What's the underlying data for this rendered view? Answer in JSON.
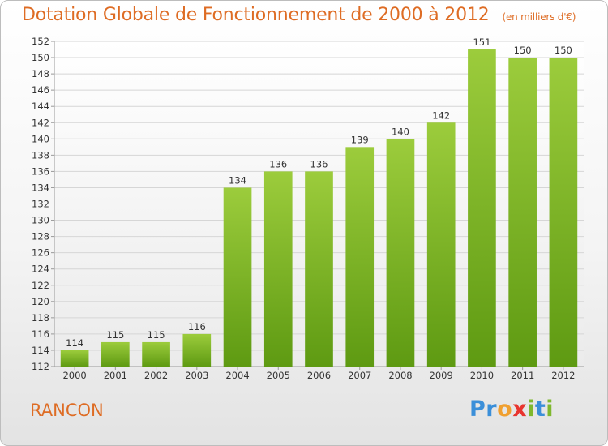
{
  "title": "Dotation Globale de Fonctionnement de 2000 à 2012",
  "subtitle": "(en milliers d'€)",
  "commune": "RANCON",
  "logo": {
    "text": "Proxiti",
    "letters": [
      "P",
      "r",
      "o",
      "x",
      "i",
      "t",
      "i"
    ],
    "colors": [
      "#3b8fd9",
      "#3b8fd9",
      "#f0a030",
      "#e8352f",
      "#7fb82e",
      "#3b8fd9",
      "#7fb82e"
    ]
  },
  "colors": {
    "title": "#de6c24",
    "bar_top": "#9ccc3c",
    "bar_bottom": "#5e9a12",
    "grid": "#d6d6d6"
  },
  "chart_data": {
    "type": "bar",
    "title": "Dotation Globale de Fonctionnement de 2000 à 2012",
    "subtitle": "(en milliers d'€)",
    "categories": [
      "2000",
      "2001",
      "2002",
      "2003",
      "2004",
      "2005",
      "2006",
      "2007",
      "2008",
      "2009",
      "2010",
      "2011",
      "2012"
    ],
    "values": [
      114,
      115,
      115,
      116,
      134,
      136,
      136,
      139,
      140,
      142,
      151,
      150,
      150
    ],
    "ylim": [
      112,
      152
    ],
    "yticks": [
      112,
      114,
      116,
      118,
      120,
      122,
      124,
      126,
      128,
      130,
      132,
      134,
      136,
      138,
      140,
      142,
      144,
      146,
      148,
      150,
      152
    ],
    "grid": true,
    "legend": "none"
  }
}
